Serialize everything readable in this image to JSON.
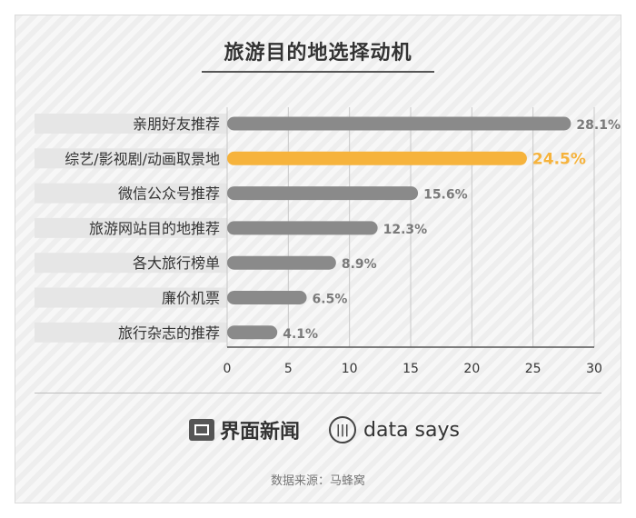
{
  "chart_data": {
    "type": "bar",
    "orientation": "horizontal",
    "title": "旅游目的地选择动机",
    "categories": [
      "亲朋好友推荐",
      "综艺/影视剧/动画取景地",
      "微信公众号推荐",
      "旅游网站目的地推荐",
      "各大旅行榜单",
      "廉价机票",
      "旅行杂志的推荐"
    ],
    "values": [
      28.1,
      24.5,
      15.6,
      12.3,
      8.9,
      6.5,
      4.1
    ],
    "value_labels": [
      "28.1%",
      "24.5%",
      "15.6%",
      "12.3%",
      "8.9%",
      "6.5%",
      "4.1%"
    ],
    "highlight_index": 1,
    "xlim": [
      0,
      30
    ],
    "xticks": [
      "0",
      "5",
      "10",
      "15",
      "20",
      "25",
      "30"
    ],
    "grid": "vertical",
    "colors": {
      "bar": "#8a8a8a",
      "highlight": "#f6b33c",
      "label": "#7a7a7a",
      "band": "#e6e6e6"
    }
  },
  "footer": {
    "logo1_text": "界面新闻",
    "logo1_icon": "jiemian-logo-icon",
    "logo2_text": "data says",
    "logo2_icon": "data-says-logo-icon",
    "source": "数据来源：马蜂窝"
  }
}
